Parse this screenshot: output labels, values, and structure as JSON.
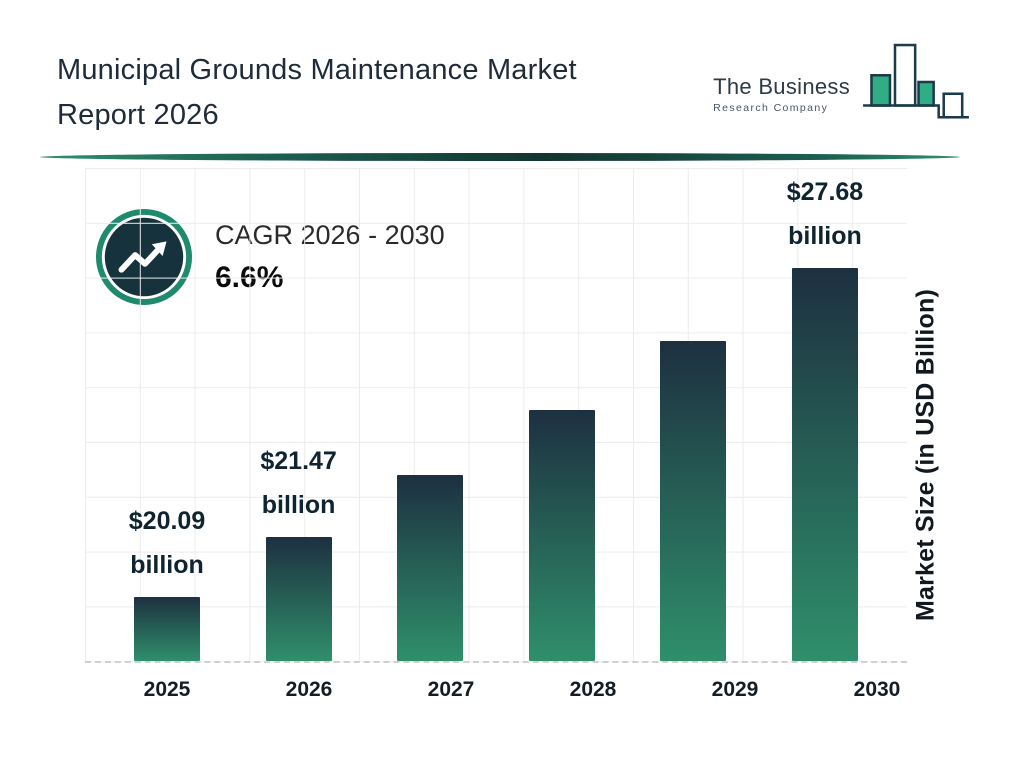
{
  "header": {
    "title_line1": "Municipal Grounds Maintenance Market",
    "title_line2": "Report 2026",
    "logo": {
      "name": "The Business",
      "subtitle": "Research Company"
    }
  },
  "cagr": {
    "label": "CAGR 2026 - 2030",
    "value": "6.6%"
  },
  "chart_data": {
    "type": "bar",
    "title": "Municipal Grounds Maintenance Market Report 2026",
    "categories": [
      "2025",
      "2026",
      "2027",
      "2028",
      "2029",
      "2030"
    ],
    "values": [
      20.09,
      21.47,
      22.89,
      24.4,
      26.01,
      27.68
    ],
    "labels": [
      {
        "amount": "$20.09",
        "unit": "billion"
      },
      {
        "amount": "$21.47",
        "unit": "billion"
      },
      null,
      null,
      null,
      {
        "amount": "$27.68",
        "unit": "billion"
      }
    ],
    "xlabel": "",
    "ylabel": "Market Size (in USD Billion)",
    "ylim": [
      18.6,
      30.0
    ],
    "grid": true,
    "legend": false,
    "bar_color_top": "#1d3040",
    "bar_color_bottom": "#2f8f6b"
  },
  "colors": {
    "accent_teal": "#2e8f6d",
    "ring_teal": "#1f8a6e",
    "dark_navy": "#16323c",
    "title_text": "#1f2b38",
    "grid_line": "#ececec"
  }
}
